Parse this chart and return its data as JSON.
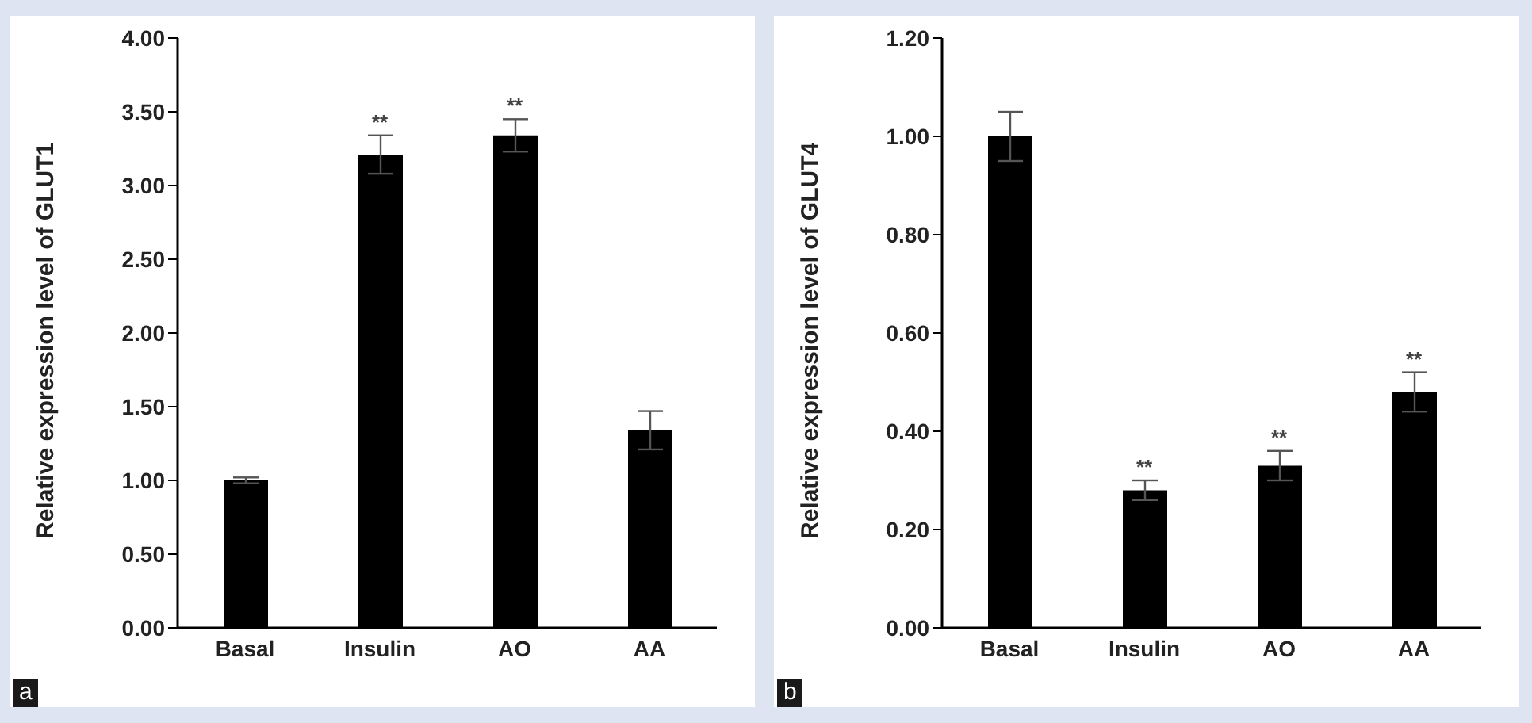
{
  "chart_data": [
    {
      "type": "bar",
      "ylabel": "Relative expression level of GLUT1",
      "categories": [
        "Basal",
        "Insulin",
        "AO",
        "AA"
      ],
      "values": [
        1.0,
        3.21,
        3.34,
        1.34
      ],
      "errors": [
        0.02,
        0.13,
        0.11,
        0.13
      ],
      "color": "#000000",
      "ylim": [
        0,
        4
      ],
      "yticks": [
        {
          "value": 0,
          "label": "0.00"
        },
        {
          "value": 0.5,
          "label": "0.50"
        },
        {
          "value": 1,
          "label": "1.00"
        },
        {
          "value": 1.5,
          "label": "1.50"
        },
        {
          "value": 2,
          "label": "2.00"
        },
        {
          "value": 2.5,
          "label": "2.50"
        },
        {
          "value": 3,
          "label": "3.00"
        },
        {
          "value": 3.5,
          "label": "3.50"
        },
        {
          "value": 4,
          "label": "4.00"
        }
      ],
      "grid": false,
      "annotations": [
        {
          "text": "**",
          "x": "Insulin",
          "y": 3.34
        },
        {
          "text": "**",
          "x": "AO",
          "y": 3.45
        },
        "a"
      ]
    },
    {
      "type": "bar",
      "ylabel": "Relative expression level of GLUT4",
      "categories": [
        "Basal",
        "Insulin",
        "AO",
        "AA"
      ],
      "values": [
        1.0,
        0.28,
        0.33,
        0.48
      ],
      "errors": [
        0.05,
        0.02,
        0.03,
        0.04
      ],
      "color": "#000000",
      "ylim": [
        0,
        1.2
      ],
      "yticks": [
        {
          "value": 0,
          "label": "0.00"
        },
        {
          "value": 0.2,
          "label": "0.20"
        },
        {
          "value": 0.4,
          "label": "0.40"
        },
        {
          "value": 0.6,
          "label": "0.60"
        },
        {
          "value": 0.8,
          "label": "0.80"
        },
        {
          "value": 1,
          "label": "1.00"
        },
        {
          "value": 1.2,
          "label": "1.20"
        }
      ],
      "grid": false,
      "annotations": [
        {
          "text": "**",
          "x": "Insulin",
          "y": 0.3
        },
        {
          "text": "**",
          "x": "AO",
          "y": 0.36
        },
        {
          "text": "**",
          "x": "AA",
          "y": 0.52
        },
        "b"
      ]
    }
  ]
}
